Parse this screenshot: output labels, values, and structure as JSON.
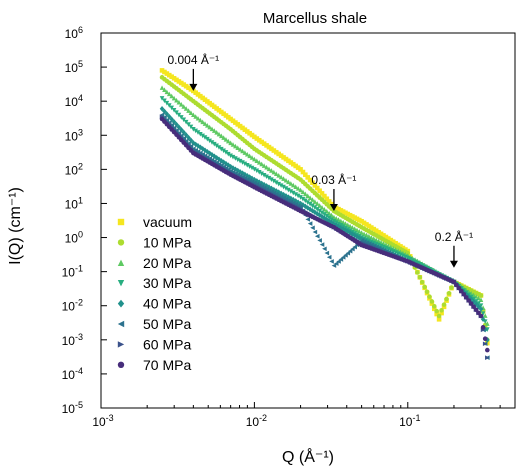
{
  "chart_data": {
    "type": "scatter",
    "title": "Marcellus shale",
    "xlabel": "Q (Å⁻¹)",
    "ylabel": "I(Q) (cm⁻¹)",
    "xscale": "log",
    "yscale": "log",
    "xlim": [
      0.001,
      0.5
    ],
    "ylim": [
      1e-05,
      1000000
    ],
    "grid": false,
    "legend_position": "lower-left",
    "x_ticks": [
      {
        "value": 0.001,
        "base": "10",
        "exp": "-3"
      },
      {
        "value": 0.01,
        "base": "10",
        "exp": "-2"
      },
      {
        "value": 0.1,
        "base": "10",
        "exp": "-1"
      }
    ],
    "y_ticks": [
      {
        "value": 1000000,
        "base": "10",
        "exp": "6"
      },
      {
        "value": 100000,
        "base": "10",
        "exp": "5"
      },
      {
        "value": 10000,
        "base": "10",
        "exp": "4"
      },
      {
        "value": 1000,
        "base": "10",
        "exp": "3"
      },
      {
        "value": 100,
        "base": "10",
        "exp": "2"
      },
      {
        "value": 10,
        "base": "10",
        "exp": "1"
      },
      {
        "value": 1,
        "base": "10",
        "exp": "0"
      },
      {
        "value": 0.1,
        "base": "10",
        "exp": "-1"
      },
      {
        "value": 0.01,
        "base": "10",
        "exp": "-2"
      },
      {
        "value": 0.001,
        "base": "10",
        "exp": "-3"
      },
      {
        "value": 0.0001,
        "base": "10",
        "exp": "-4"
      },
      {
        "value": 1e-05,
        "base": "10",
        "exp": "-5"
      }
    ],
    "annotations": [
      {
        "label": "0.004 Å⁻¹",
        "x": 0.004,
        "y": 20000
      },
      {
        "label": "0.03 Å⁻¹",
        "x": 0.033,
        "y": 6
      },
      {
        "label": "0.2 Å⁻¹",
        "x": 0.2,
        "y": 0.13
      }
    ],
    "series": [
      {
        "name": "vacuum",
        "color": "#f5e61f",
        "marker": "square",
        "values": [
          [
            0.0025,
            80000
          ],
          [
            0.004,
            20000
          ],
          [
            0.007,
            3000
          ],
          [
            0.01,
            900
          ],
          [
            0.02,
            100
          ],
          [
            0.033,
            8
          ],
          [
            0.05,
            3
          ],
          [
            0.1,
            0.4
          ],
          [
            0.16,
            0.004
          ],
          [
            0.2,
            0.05
          ],
          [
            0.3,
            0.02
          ],
          [
            0.33,
            0.0008
          ]
        ]
      },
      {
        "name": "10 MPa",
        "color": "#addc30",
        "marker": "circle",
        "values": [
          [
            0.0025,
            50000
          ],
          [
            0.004,
            10000
          ],
          [
            0.007,
            1500
          ],
          [
            0.01,
            400
          ],
          [
            0.02,
            50
          ],
          [
            0.033,
            6
          ],
          [
            0.05,
            2
          ],
          [
            0.1,
            0.35
          ],
          [
            0.16,
            0.005
          ],
          [
            0.2,
            0.05
          ],
          [
            0.3,
            0.02
          ],
          [
            0.33,
            0.001
          ]
        ]
      },
      {
        "name": "20 MPa",
        "color": "#5ec962",
        "marker": "triangle-up",
        "values": [
          [
            0.0025,
            25000
          ],
          [
            0.004,
            4000
          ],
          [
            0.007,
            600
          ],
          [
            0.01,
            200
          ],
          [
            0.02,
            25
          ],
          [
            0.033,
            4
          ],
          [
            0.05,
            1.4
          ],
          [
            0.1,
            0.3
          ],
          [
            0.2,
            0.05
          ],
          [
            0.3,
            0.015
          ],
          [
            0.33,
            0.003
          ]
        ]
      },
      {
        "name": "30 MPa",
        "color": "#28ae80",
        "marker": "triangle-down",
        "values": [
          [
            0.0025,
            12000
          ],
          [
            0.004,
            1500
          ],
          [
            0.007,
            250
          ],
          [
            0.01,
            100
          ],
          [
            0.02,
            15
          ],
          [
            0.033,
            3
          ],
          [
            0.05,
            1
          ],
          [
            0.1,
            0.25
          ],
          [
            0.2,
            0.05
          ],
          [
            0.3,
            0.01
          ],
          [
            0.33,
            0.002
          ]
        ]
      },
      {
        "name": "40 MPa",
        "color": "#21918c",
        "marker": "diamond",
        "values": [
          [
            0.0025,
            6000
          ],
          [
            0.004,
            600
          ],
          [
            0.007,
            120
          ],
          [
            0.01,
            50
          ],
          [
            0.02,
            10
          ],
          [
            0.033,
            2.5
          ],
          [
            0.05,
            0.9
          ],
          [
            0.1,
            0.2
          ],
          [
            0.2,
            0.05
          ],
          [
            0.3,
            0.008
          ],
          [
            0.33,
            0.001
          ]
        ]
      },
      {
        "name": "50 MPa",
        "color": "#2c728e",
        "marker": "triangle-left",
        "values": [
          [
            0.0025,
            4000
          ],
          [
            0.004,
            400
          ],
          [
            0.007,
            90
          ],
          [
            0.01,
            40
          ],
          [
            0.02,
            8
          ],
          [
            0.033,
            0.15
          ],
          [
            0.05,
            0.8
          ],
          [
            0.1,
            0.2
          ],
          [
            0.2,
            0.05
          ],
          [
            0.3,
            0.005
          ],
          [
            0.33,
            0.0003
          ]
        ]
      },
      {
        "name": "60 MPa",
        "color": "#3b528b",
        "marker": "triangle-right",
        "values": [
          [
            0.0025,
            3500
          ],
          [
            0.004,
            350
          ],
          [
            0.007,
            80
          ],
          [
            0.01,
            35
          ],
          [
            0.02,
            7
          ],
          [
            0.033,
            2
          ],
          [
            0.05,
            0.7
          ],
          [
            0.1,
            0.2
          ],
          [
            0.2,
            0.05
          ],
          [
            0.3,
            0.005
          ],
          [
            0.33,
            0.0003
          ]
        ]
      },
      {
        "name": "70 MPa",
        "color": "#472d7b",
        "marker": "circle",
        "values": [
          [
            0.0025,
            3000
          ],
          [
            0.004,
            300
          ],
          [
            0.007,
            70
          ],
          [
            0.01,
            30
          ],
          [
            0.02,
            6
          ],
          [
            0.033,
            2
          ],
          [
            0.05,
            0.6
          ],
          [
            0.1,
            0.2
          ],
          [
            0.2,
            0.05
          ],
          [
            0.3,
            0.005
          ],
          [
            0.33,
            0.0005
          ]
        ]
      }
    ]
  }
}
